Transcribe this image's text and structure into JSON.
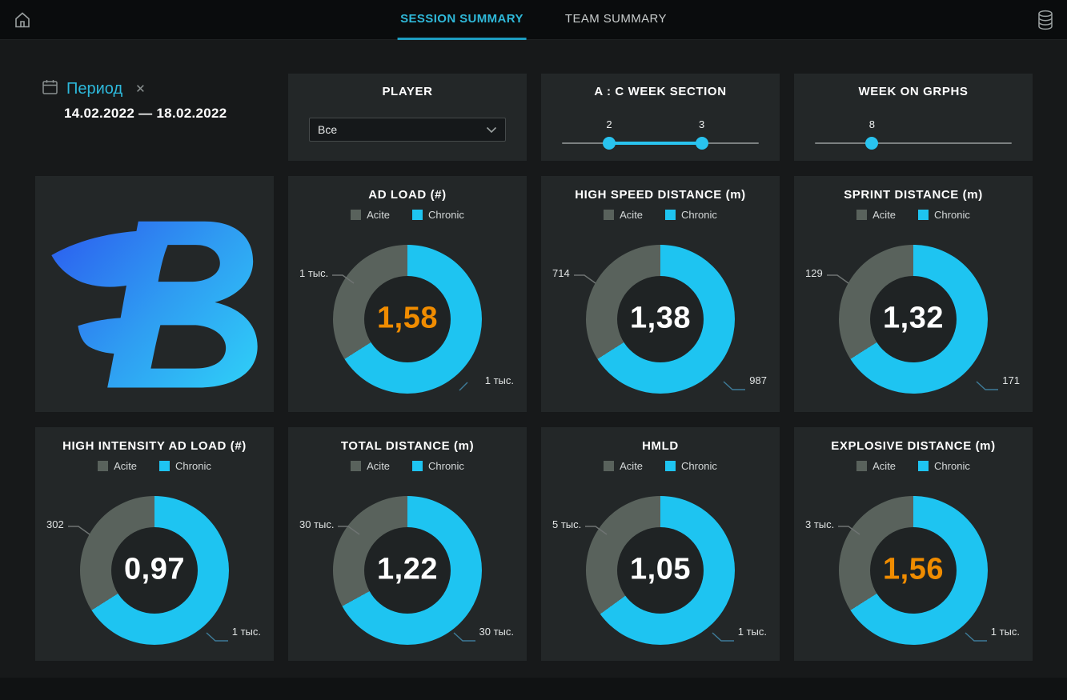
{
  "header": {
    "tabs": [
      {
        "label": "SESSION SUMMARY",
        "active": true
      },
      {
        "label": "TEAM SUMMARY",
        "active": false
      }
    ]
  },
  "filters": {
    "period": {
      "label": "Период",
      "range": "14.02.2022 — 18.02.2022"
    },
    "player": {
      "title": "PLAYER",
      "selected": "Все"
    },
    "ac_week_section": {
      "title": "A : C WEEK SECTION",
      "min_label": "2",
      "max_label": "3",
      "min_pos_pct": 24,
      "max_pos_pct": 71
    },
    "week_on_graphs": {
      "title": "WEEK ON GRPHS",
      "value_label": "8",
      "pos_pct": 29
    }
  },
  "legend": {
    "acute": "Acite",
    "chronic": "Chronic"
  },
  "colors": {
    "accent_cyan": "#29c3ef",
    "tab_cyan": "#2fb9d9",
    "acute_gray": "#59625c",
    "chronic_cyan": "#1ec4f1",
    "orange": "#f08c00",
    "white": "#ffffff",
    "panel_bg": "#232728"
  },
  "charts": [
    {
      "type": "donut",
      "title": "AD LOAD (#)",
      "acute_label": "1 тыс.",
      "chronic_label": "1 тыс.",
      "value": "1,58",
      "value_color": "#f08c00",
      "chronic_pct": 66
    },
    {
      "type": "donut",
      "title": "HIGH SPEED DISTANCE (m)",
      "acute_label": "714",
      "chronic_label": "987",
      "value": "1,38",
      "value_color": "#ffffff",
      "chronic_pct": 66
    },
    {
      "type": "donut",
      "title": "SPRINT DISTANCE (m)",
      "acute_label": "129",
      "chronic_label": "171",
      "value": "1,32",
      "value_color": "#ffffff",
      "chronic_pct": 66
    },
    {
      "type": "donut",
      "title": "HIGH INTENSITY AD LOAD (#)",
      "acute_label": "302",
      "chronic_label": "1 тыс.",
      "value": "0,97",
      "value_color": "#ffffff",
      "chronic_pct": 66
    },
    {
      "type": "donut",
      "title": "TOTAL DISTANCE (m)",
      "acute_label": "30 тыс.",
      "chronic_label": "30 тыс.",
      "value": "1,22",
      "value_color": "#ffffff",
      "chronic_pct": 67
    },
    {
      "type": "donut",
      "title": "HMLD",
      "acute_label": "5 тыс.",
      "chronic_label": "1 тыс.",
      "value": "1,05",
      "value_color": "#ffffff",
      "chronic_pct": 65
    },
    {
      "type": "donut",
      "title": "EXPLOSIVE DISTANCE (m)",
      "acute_label": "3 тыс.",
      "chronic_label": "1 тыс.",
      "value": "1,56",
      "value_color": "#f08c00",
      "chronic_pct": 66
    }
  ]
}
